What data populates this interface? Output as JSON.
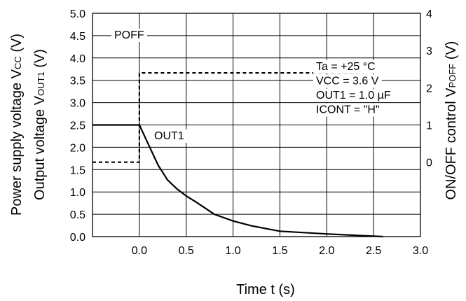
{
  "chart_data": {
    "type": "line",
    "title": "",
    "xlabel": "Time t (s)",
    "ylabel_left_1": "Power supply voltage V",
    "ylabel_left_1_sub": "CC",
    "ylabel_left_1_unit": " (V)",
    "ylabel_left_2": "Output voltage V",
    "ylabel_left_2_sub": "OUT1",
    "ylabel_left_2_unit": " (V)",
    "ylabel_right": "ON/OFF control V",
    "ylabel_right_sub": "POFF",
    "ylabel_right_unit": " (V)",
    "xlim": [
      -0.5,
      3.0
    ],
    "ylim_left": [
      0.0,
      5.0
    ],
    "ylim_right": [
      -2,
      4
    ],
    "x_ticks": [
      "0.0",
      "0.5",
      "1.0",
      "1.5",
      "2.0",
      "2.5",
      "3.0"
    ],
    "y_ticks_left": [
      "0.0",
      "0.5",
      "1.0",
      "1.5",
      "2.0",
      "2.5",
      "3.0",
      "3.5",
      "4.0",
      "4.5",
      "5.0"
    ],
    "y_ticks_right": [
      "0",
      "1",
      "2",
      "3",
      "4"
    ],
    "grid": true,
    "series": [
      {
        "name": "POFF",
        "axis": "right",
        "style": "dashed",
        "x": [
          -0.5,
          0.0,
          0.0,
          2.4
        ],
        "y": [
          0.0,
          0.0,
          2.4,
          2.4
        ]
      },
      {
        "name": "OUT1",
        "axis": "left",
        "style": "solid",
        "x": [
          -0.5,
          0.0,
          0.1,
          0.2,
          0.3,
          0.4,
          0.5,
          0.6,
          0.8,
          1.0,
          1.2,
          1.5,
          2.0,
          2.5,
          2.6
        ],
        "y": [
          2.5,
          2.5,
          2.05,
          1.6,
          1.27,
          1.07,
          0.91,
          0.78,
          0.5,
          0.35,
          0.24,
          0.12,
          0.06,
          0.01,
          0.0
        ]
      }
    ],
    "conditions": [
      "Ta = +25 °C",
      "VCC = 3.6 V",
      "OUT1 = 1.0 µF",
      "ICONT = \"H\""
    ]
  }
}
